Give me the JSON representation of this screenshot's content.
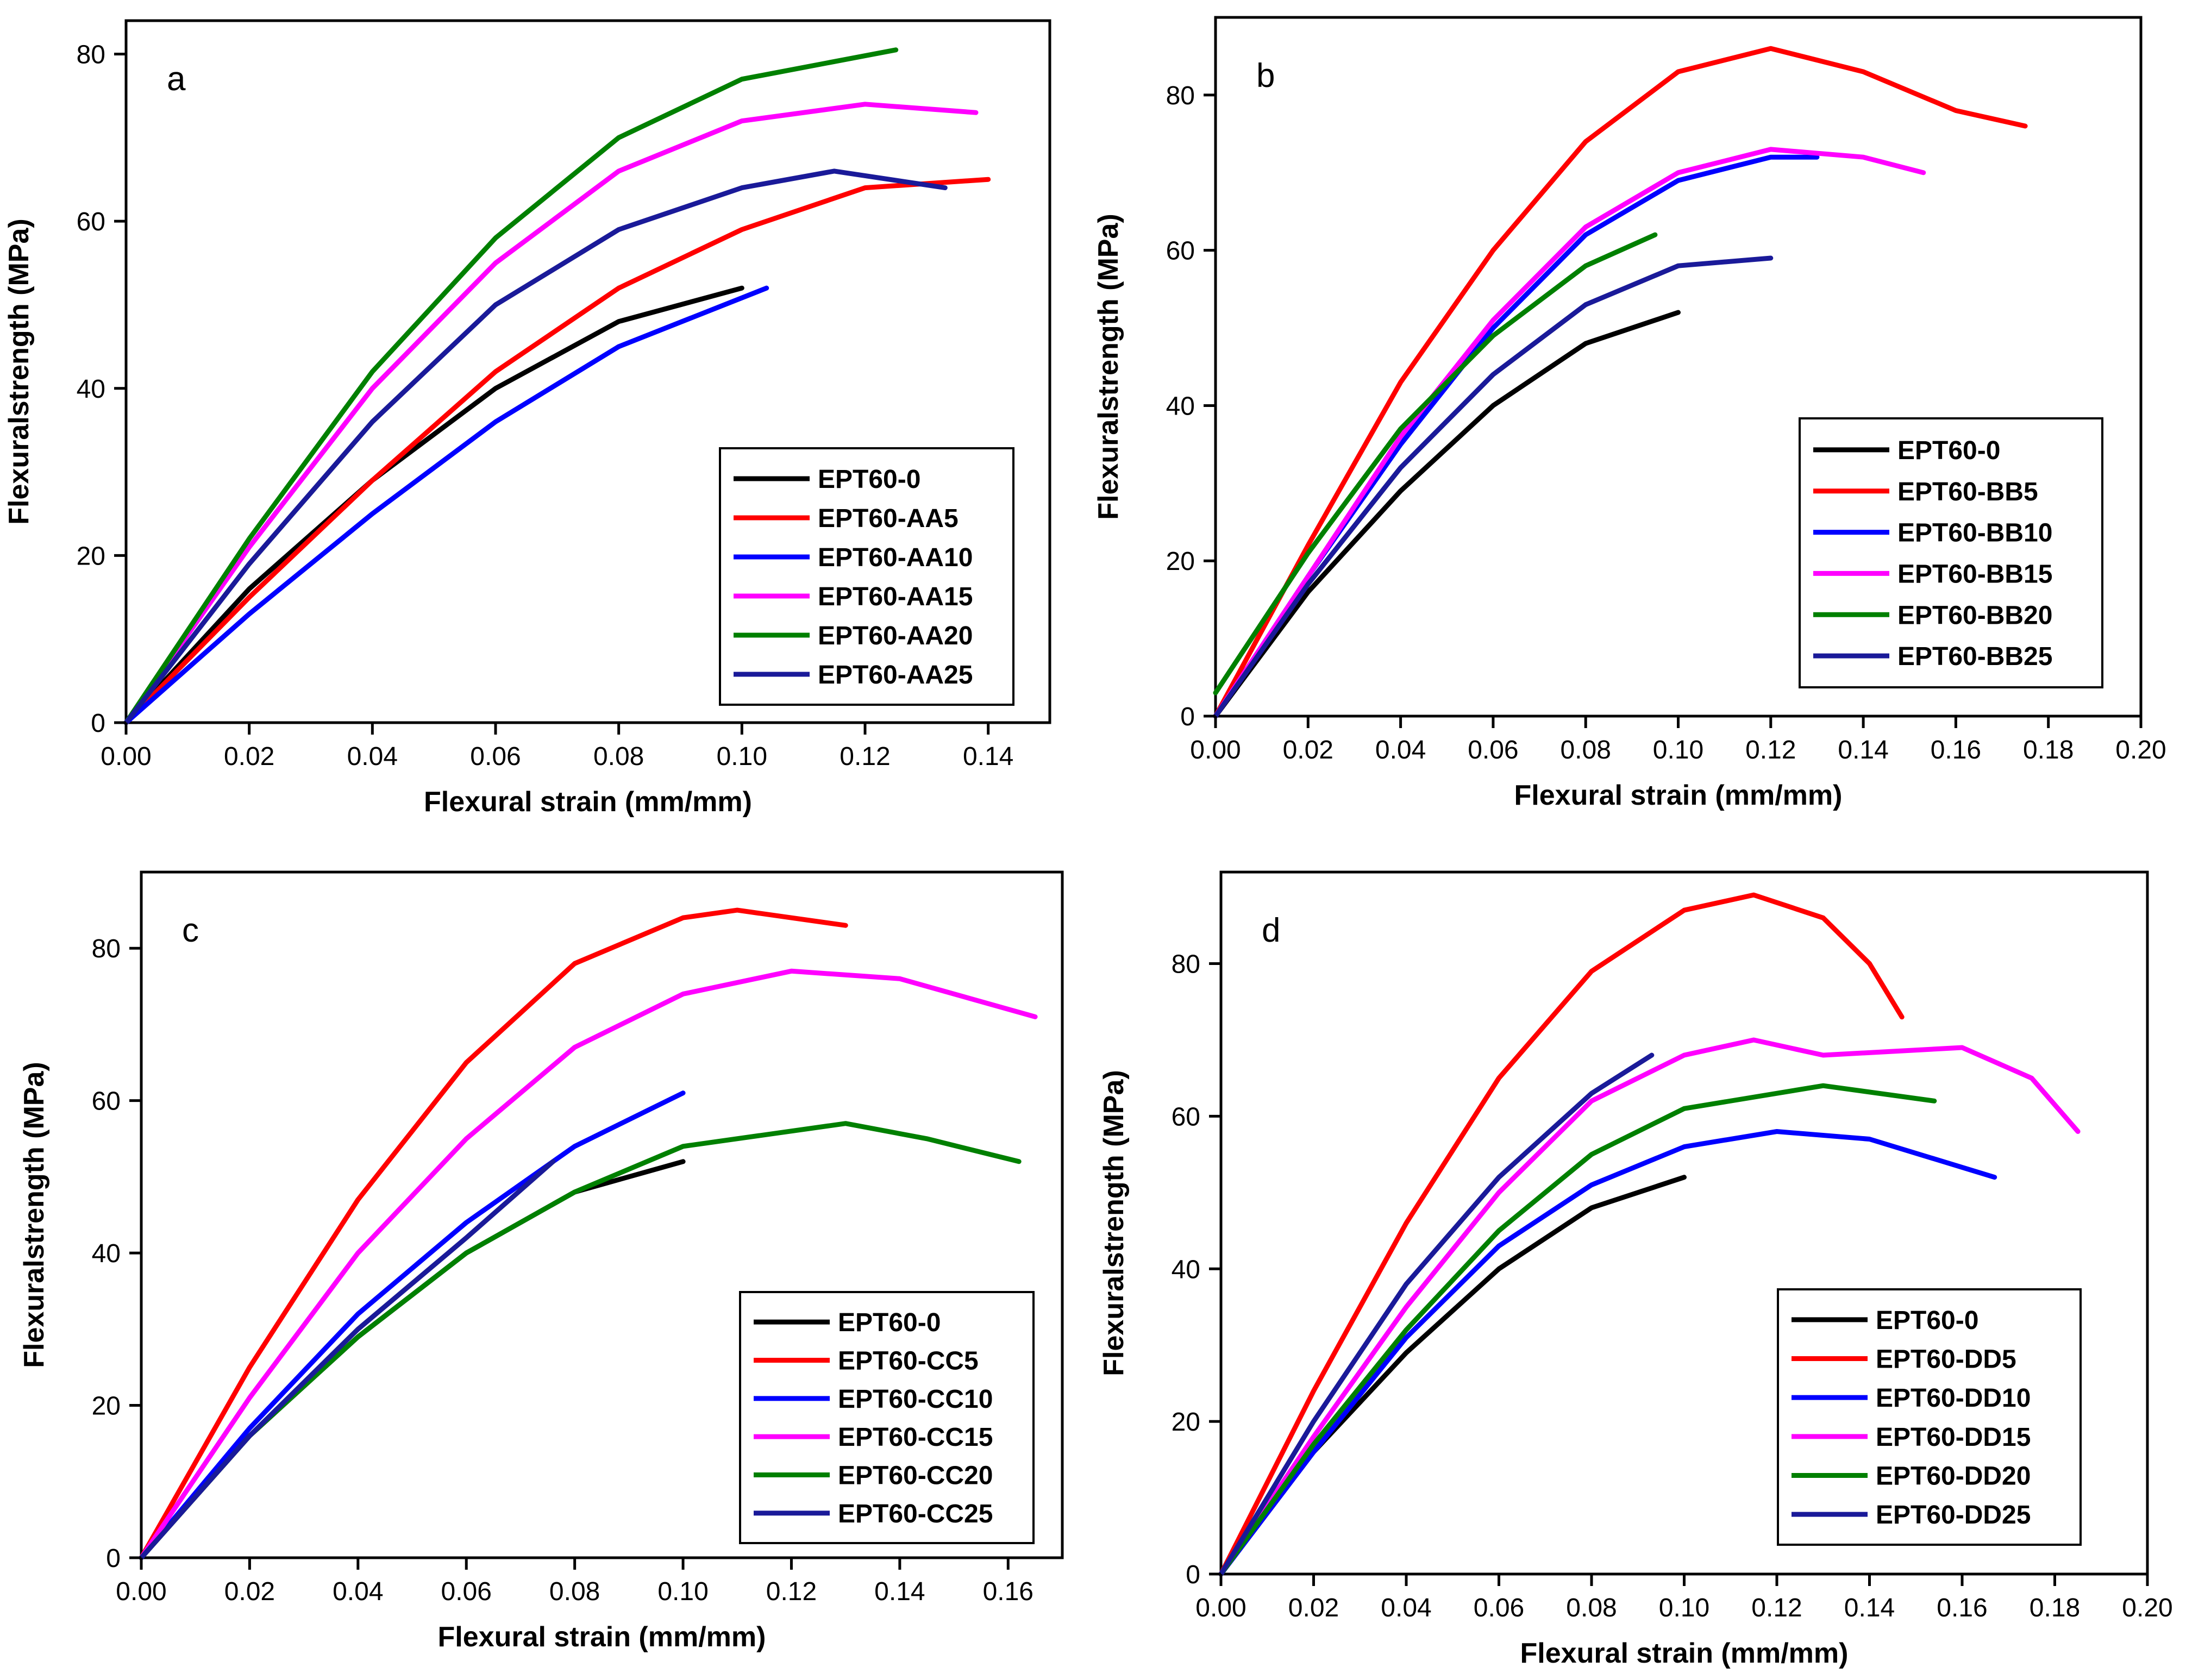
{
  "figure": {
    "panel_count": 4
  },
  "chart_data": [
    {
      "type": "line",
      "panel_label": "a",
      "xlabel": "Flexural strain (mm/mm)",
      "ylabel": "Flexuralstrength (MPa)",
      "xlim": [
        0,
        0.15
      ],
      "ylim": [
        0,
        84
      ],
      "xticks": [
        0.0,
        0.02,
        0.04,
        0.06,
        0.08,
        0.1,
        0.12,
        0.14
      ],
      "xtick_labels": [
        "0.00",
        "0.02",
        "0.04",
        "0.06",
        "0.08",
        "0.10",
        "0.12",
        "0.14"
      ],
      "yticks": [
        0,
        20,
        40,
        60,
        80
      ],
      "ytick_labels": [
        "0",
        "20",
        "40",
        "60",
        "80"
      ],
      "legend_position": "bottom-right",
      "series": [
        {
          "name": "EPT60-0",
          "color": "#000000",
          "x": [
            0,
            0.02,
            0.04,
            0.06,
            0.08,
            0.1
          ],
          "y": [
            0,
            16,
            29,
            40,
            48,
            52
          ]
        },
        {
          "name": "EPT60-AA5",
          "color": "#ff0000",
          "x": [
            0,
            0.02,
            0.04,
            0.06,
            0.08,
            0.1,
            0.12,
            0.14
          ],
          "y": [
            0,
            15,
            29,
            42,
            52,
            59,
            64,
            65
          ]
        },
        {
          "name": "EPT60-AA10",
          "color": "#0000ff",
          "x": [
            0,
            0.02,
            0.04,
            0.06,
            0.08,
            0.104
          ],
          "y": [
            0,
            13,
            25,
            36,
            45,
            52
          ]
        },
        {
          "name": "EPT60-AA15",
          "color": "#ff00ff",
          "x": [
            0,
            0.02,
            0.04,
            0.06,
            0.08,
            0.1,
            0.12,
            0.138
          ],
          "y": [
            0,
            21,
            40,
            55,
            66,
            72,
            74,
            73
          ]
        },
        {
          "name": "EPT60-AA20",
          "color": "#008000",
          "x": [
            0,
            0.02,
            0.04,
            0.06,
            0.08,
            0.1,
            0.125
          ],
          "y": [
            0,
            22,
            42,
            58,
            70,
            77,
            80.5
          ]
        },
        {
          "name": "EPT60-AA25",
          "color": "#1a1a99",
          "x": [
            0,
            0.02,
            0.04,
            0.06,
            0.08,
            0.1,
            0.115,
            0.133
          ],
          "y": [
            0,
            19,
            36,
            50,
            59,
            64,
            66,
            64
          ]
        }
      ]
    },
    {
      "type": "line",
      "panel_label": "b",
      "xlabel": "Flexural strain (mm/mm)",
      "ylabel": "Flexuralstrength (MPa)",
      "xlim": [
        0,
        0.2
      ],
      "ylim": [
        0,
        90
      ],
      "xticks": [
        0.0,
        0.02,
        0.04,
        0.06,
        0.08,
        0.1,
        0.12,
        0.14,
        0.16,
        0.18,
        0.2
      ],
      "xtick_labels": [
        "0.00",
        "0.02",
        "0.04",
        "0.06",
        "0.08",
        "0.10",
        "0.12",
        "0.14",
        "0.16",
        "0.18",
        "0.20"
      ],
      "yticks": [
        0,
        20,
        40,
        60,
        80
      ],
      "ytick_labels": [
        "0",
        "20",
        "40",
        "60",
        "80"
      ],
      "legend_position": "bottom-right",
      "series": [
        {
          "name": "EPT60-0",
          "color": "#000000",
          "x": [
            0,
            0.02,
            0.04,
            0.06,
            0.08,
            0.1
          ],
          "y": [
            0,
            16,
            29,
            40,
            48,
            52
          ]
        },
        {
          "name": "EPT60-BB5",
          "color": "#ff0000",
          "x": [
            0,
            0.02,
            0.04,
            0.06,
            0.08,
            0.1,
            0.12,
            0.14,
            0.16,
            0.175
          ],
          "y": [
            0,
            22,
            43,
            60,
            74,
            83,
            86,
            83,
            78,
            76
          ]
        },
        {
          "name": "EPT60-BB10",
          "color": "#0000ff",
          "x": [
            0,
            0.02,
            0.04,
            0.06,
            0.08,
            0.1,
            0.12,
            0.13
          ],
          "y": [
            0,
            18,
            35,
            50,
            62,
            69,
            72,
            72
          ]
        },
        {
          "name": "EPT60-BB15",
          "color": "#ff00ff",
          "x": [
            0,
            0.02,
            0.04,
            0.06,
            0.08,
            0.1,
            0.12,
            0.14,
            0.153
          ],
          "y": [
            0,
            18,
            36,
            51,
            63,
            70,
            73,
            72,
            70
          ]
        },
        {
          "name": "EPT60-BB20",
          "color": "#008000",
          "x": [
            0,
            0.02,
            0.04,
            0.06,
            0.08,
            0.095
          ],
          "y": [
            3,
            21,
            37,
            49,
            58,
            62
          ]
        },
        {
          "name": "EPT60-BB25",
          "color": "#1a1a99",
          "x": [
            0,
            0.02,
            0.04,
            0.06,
            0.08,
            0.1,
            0.12
          ],
          "y": [
            0,
            17,
            32,
            44,
            53,
            58,
            59
          ]
        }
      ]
    },
    {
      "type": "line",
      "panel_label": "c",
      "xlabel": "Flexural strain (mm/mm)",
      "ylabel": "Flexuralstrength (MPa)",
      "xlim": [
        0,
        0.17
      ],
      "ylim": [
        0,
        90
      ],
      "xticks": [
        0.0,
        0.02,
        0.04,
        0.06,
        0.08,
        0.1,
        0.12,
        0.14,
        0.16
      ],
      "xtick_labels": [
        "0.00",
        "0.02",
        "0.04",
        "0.06",
        "0.08",
        "0.10",
        "0.12",
        "0.14",
        "0.16"
      ],
      "yticks": [
        0,
        20,
        40,
        60,
        80
      ],
      "ytick_labels": [
        "0",
        "20",
        "40",
        "60",
        "80"
      ],
      "legend_position": "bottom-right",
      "series": [
        {
          "name": "EPT60-0",
          "color": "#000000",
          "x": [
            0,
            0.02,
            0.04,
            0.06,
            0.08,
            0.1
          ],
          "y": [
            0,
            16,
            29,
            40,
            48,
            52
          ]
        },
        {
          "name": "EPT60-CC5",
          "color": "#ff0000",
          "x": [
            0,
            0.02,
            0.04,
            0.06,
            0.08,
            0.1,
            0.11,
            0.13
          ],
          "y": [
            0,
            25,
            47,
            65,
            78,
            84,
            85,
            83
          ]
        },
        {
          "name": "EPT60-CC10",
          "color": "#0000ff",
          "x": [
            0,
            0.02,
            0.04,
            0.06,
            0.08,
            0.1
          ],
          "y": [
            0,
            17,
            32,
            44,
            54,
            61
          ]
        },
        {
          "name": "EPT60-CC15",
          "color": "#ff00ff",
          "x": [
            0,
            0.02,
            0.04,
            0.06,
            0.08,
            0.1,
            0.12,
            0.14,
            0.165
          ],
          "y": [
            0,
            21,
            40,
            55,
            67,
            74,
            77,
            76,
            71
          ]
        },
        {
          "name": "EPT60-CC20",
          "color": "#008000",
          "x": [
            0,
            0.02,
            0.04,
            0.06,
            0.08,
            0.1,
            0.13,
            0.145,
            0.162
          ],
          "y": [
            0,
            16,
            29,
            40,
            48,
            54,
            57,
            55,
            52
          ]
        },
        {
          "name": "EPT60-CC25",
          "color": "#1a1a99",
          "x": [
            0,
            0.02,
            0.04,
            0.06,
            0.076
          ],
          "y": [
            0,
            16,
            30,
            42,
            52
          ]
        }
      ]
    },
    {
      "type": "line",
      "panel_label": "d",
      "xlabel": "Flexural strain (mm/mm)",
      "ylabel": "Flexuralstrength (MPa)",
      "xlim": [
        0,
        0.2
      ],
      "ylim": [
        0,
        92
      ],
      "xticks": [
        0.0,
        0.02,
        0.04,
        0.06,
        0.08,
        0.1,
        0.12,
        0.14,
        0.16,
        0.18,
        0.2
      ],
      "xtick_labels": [
        "0.00",
        "0.02",
        "0.04",
        "0.06",
        "0.08",
        "0.10",
        "0.12",
        "0.14",
        "0.16",
        "0.18",
        "0.20"
      ],
      "yticks": [
        0,
        20,
        40,
        60,
        80
      ],
      "ytick_labels": [
        "0",
        "20",
        "40",
        "60",
        "80"
      ],
      "legend_position": "bottom-right",
      "series": [
        {
          "name": "EPT60-0",
          "color": "#000000",
          "x": [
            0,
            0.02,
            0.04,
            0.06,
            0.08,
            0.1
          ],
          "y": [
            0,
            16,
            29,
            40,
            48,
            52
          ]
        },
        {
          "name": "EPT60-DD5",
          "color": "#ff0000",
          "x": [
            0,
            0.02,
            0.04,
            0.06,
            0.08,
            0.1,
            0.115,
            0.13,
            0.14,
            0.147
          ],
          "y": [
            0,
            24,
            46,
            65,
            79,
            87,
            89,
            86,
            80,
            73
          ]
        },
        {
          "name": "EPT60-DD10",
          "color": "#0000ff",
          "x": [
            0,
            0.02,
            0.04,
            0.06,
            0.08,
            0.1,
            0.12,
            0.14,
            0.167
          ],
          "y": [
            0,
            16,
            31,
            43,
            51,
            56,
            58,
            57,
            52
          ]
        },
        {
          "name": "EPT60-DD15",
          "color": "#ff00ff",
          "x": [
            0,
            0.02,
            0.04,
            0.06,
            0.08,
            0.1,
            0.115,
            0.13,
            0.16,
            0.175,
            0.185
          ],
          "y": [
            0,
            18,
            35,
            50,
            62,
            68,
            70,
            68,
            69,
            65,
            58
          ]
        },
        {
          "name": "EPT60-DD20",
          "color": "#008000",
          "x": [
            0,
            0.02,
            0.04,
            0.06,
            0.08,
            0.1,
            0.13,
            0.154
          ],
          "y": [
            0,
            17,
            32,
            45,
            55,
            61,
            64,
            62
          ]
        },
        {
          "name": "EPT60-DD25",
          "color": "#1a1a99",
          "x": [
            0,
            0.02,
            0.04,
            0.06,
            0.08,
            0.093
          ],
          "y": [
            0,
            20,
            38,
            52,
            63,
            68
          ]
        }
      ]
    }
  ]
}
